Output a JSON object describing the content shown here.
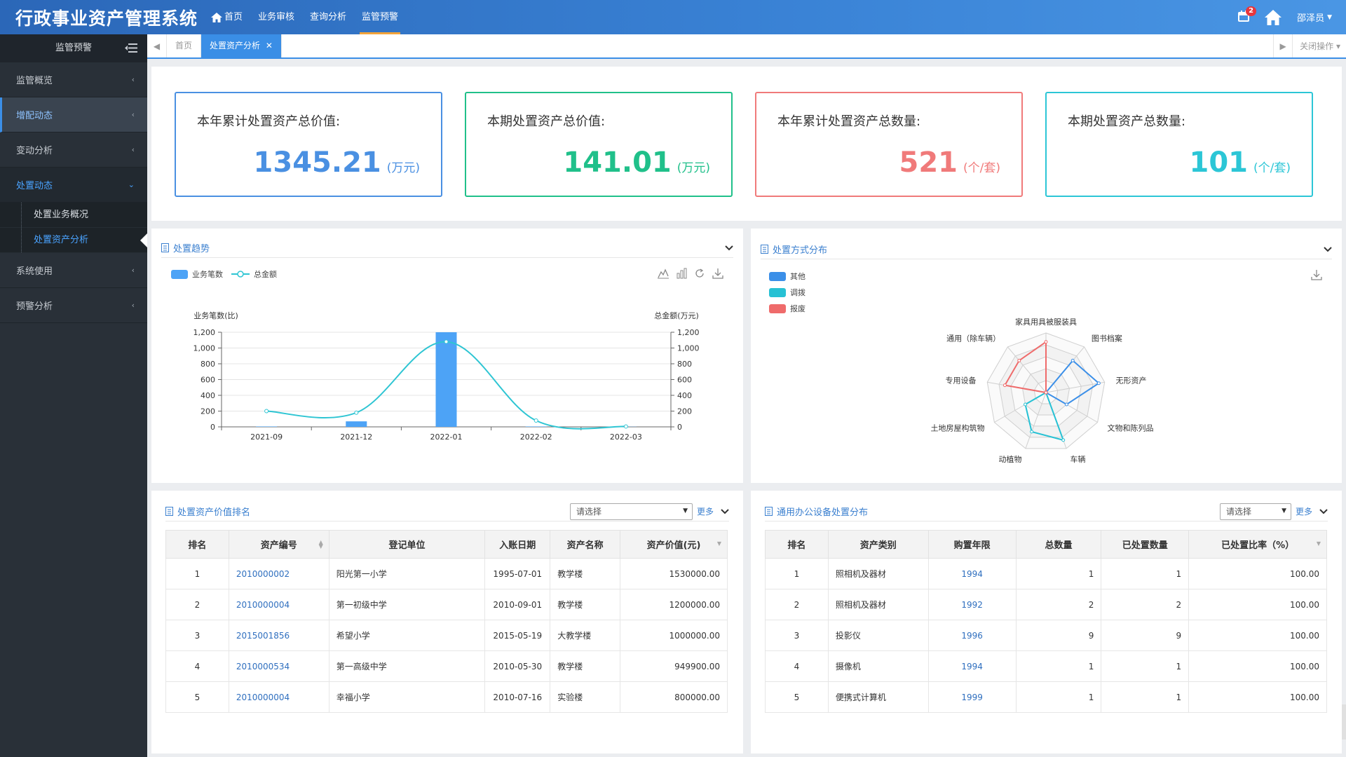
{
  "app": {
    "title": "行政事业资产管理系统"
  },
  "topnav": [
    {
      "label": "首页",
      "active": false
    },
    {
      "label": "业务审核",
      "active": false
    },
    {
      "label": "查询分析",
      "active": false
    },
    {
      "label": "监管预警",
      "active": true
    }
  ],
  "topright": {
    "notif_count": "2",
    "user": "邵泽员"
  },
  "sidebar": {
    "title": "监管预警",
    "items": [
      {
        "label": "监管概览"
      },
      {
        "label": "增配动态"
      },
      {
        "label": "变动分析"
      },
      {
        "label": "处置动态"
      },
      {
        "label": "系统使用"
      },
      {
        "label": "预警分析"
      }
    ],
    "subitems": [
      {
        "label": "处置业务概况"
      },
      {
        "label": "处置资产分析"
      }
    ]
  },
  "tabs": {
    "home": "首页",
    "active": "处置资产分析",
    "close_ops": "关闭操作"
  },
  "stats": [
    {
      "label": "本年累计处置资产总价值:",
      "value": "1345.21",
      "unit": "(万元)",
      "color": "#4a90e2"
    },
    {
      "label": "本期处置资产总价值:",
      "value": "141.01",
      "unit": "(万元)",
      "color": "#20c08a"
    },
    {
      "label": "本年累计处置资产总数量:",
      "value": "521",
      "unit": "(个/套)",
      "color": "#f07a7a"
    },
    {
      "label": "本期处置资产总数量:",
      "value": "101",
      "unit": "(个/套)",
      "color": "#2cc6d6"
    }
  ],
  "trend": {
    "title": "处置趋势",
    "legend": {
      "bar": "业务笔数",
      "line": "总金额"
    }
  },
  "radar": {
    "title": "处置方式分布",
    "legend": [
      "其他",
      "调拨",
      "报废"
    ]
  },
  "chart_data": [
    {
      "type": "bar",
      "title": "",
      "categories": [
        "2021-09",
        "2021-12",
        "2022-01",
        "2022-02",
        "2022-03"
      ],
      "ylabel": "业务笔数(比)",
      "ylabel_right": "总金额(万元)",
      "ylim": [
        0,
        1200
      ],
      "ylim_right": [
        0,
        1200
      ],
      "yticks": [
        "0",
        "200",
        "400",
        "600",
        "800",
        "1,000",
        "1,200"
      ],
      "series": [
        {
          "name": "业务笔数",
          "type": "bar",
          "color": "#4da3f6",
          "values": [
            5,
            70,
            1200,
            5,
            2
          ]
        },
        {
          "name": "总金额",
          "type": "line",
          "color": "#2ec5d3",
          "values": [
            200,
            180,
            1080,
            80,
            5
          ]
        }
      ]
    },
    {
      "type": "radar",
      "indicators": [
        "家具用具被服装具",
        "图书档案",
        "无形资产",
        "文物和陈列品",
        "车辆",
        "动植物",
        "土地房屋构筑物",
        "专用设备",
        "通用（除车辆）"
      ],
      "max": 100,
      "series": [
        {
          "name": "其他",
          "color": "#3b8fe8",
          "values": [
            0,
            70,
            90,
            40,
            0,
            0,
            0,
            0,
            0
          ]
        },
        {
          "name": "调拨",
          "color": "#27c1d4",
          "values": [
            0,
            0,
            0,
            0,
            85,
            70,
            40,
            0,
            0
          ]
        },
        {
          "name": "报废",
          "color": "#ef6b6b",
          "values": [
            85,
            0,
            0,
            0,
            0,
            0,
            0,
            70,
            70
          ]
        }
      ]
    }
  ],
  "rank": {
    "title": "处置资产价值排名",
    "select": "请选择",
    "more": "更多",
    "headers": [
      "排名",
      "资产编号",
      "登记单位",
      "入账日期",
      "资产名称",
      "资产价值(元)"
    ],
    "rows": [
      [
        "1",
        "2010000002",
        "阳光第一小学",
        "1995-07-01",
        "教学楼",
        "1530000.00"
      ],
      [
        "2",
        "2010000004",
        "第一初级中学",
        "2010-09-01",
        "教学楼",
        "1200000.00"
      ],
      [
        "3",
        "2015001856",
        "希望小学",
        "2015-05-19",
        "大教学楼",
        "1000000.00"
      ],
      [
        "4",
        "2010000534",
        "第一高级中学",
        "2010-05-30",
        "教学楼",
        "949900.00"
      ],
      [
        "5",
        "2010000004",
        "幸福小学",
        "2010-07-16",
        "实验楼",
        "800000.00"
      ]
    ]
  },
  "office": {
    "title": "通用办公设备处置分布",
    "select": "请选择",
    "more": "更多",
    "headers": [
      "排名",
      "资产类别",
      "购置年限",
      "总数量",
      "已处置数量",
      "已处置比率（%）"
    ],
    "rows": [
      [
        "1",
        "照相机及器材",
        "1994",
        "1",
        "1",
        "100.00"
      ],
      [
        "2",
        "照相机及器材",
        "1992",
        "2",
        "2",
        "100.00"
      ],
      [
        "3",
        "投影仪",
        "1996",
        "9",
        "9",
        "100.00"
      ],
      [
        "4",
        "摄像机",
        "1994",
        "1",
        "1",
        "100.00"
      ],
      [
        "5",
        "便携式计算机",
        "1999",
        "1",
        "1",
        "100.00"
      ]
    ]
  }
}
